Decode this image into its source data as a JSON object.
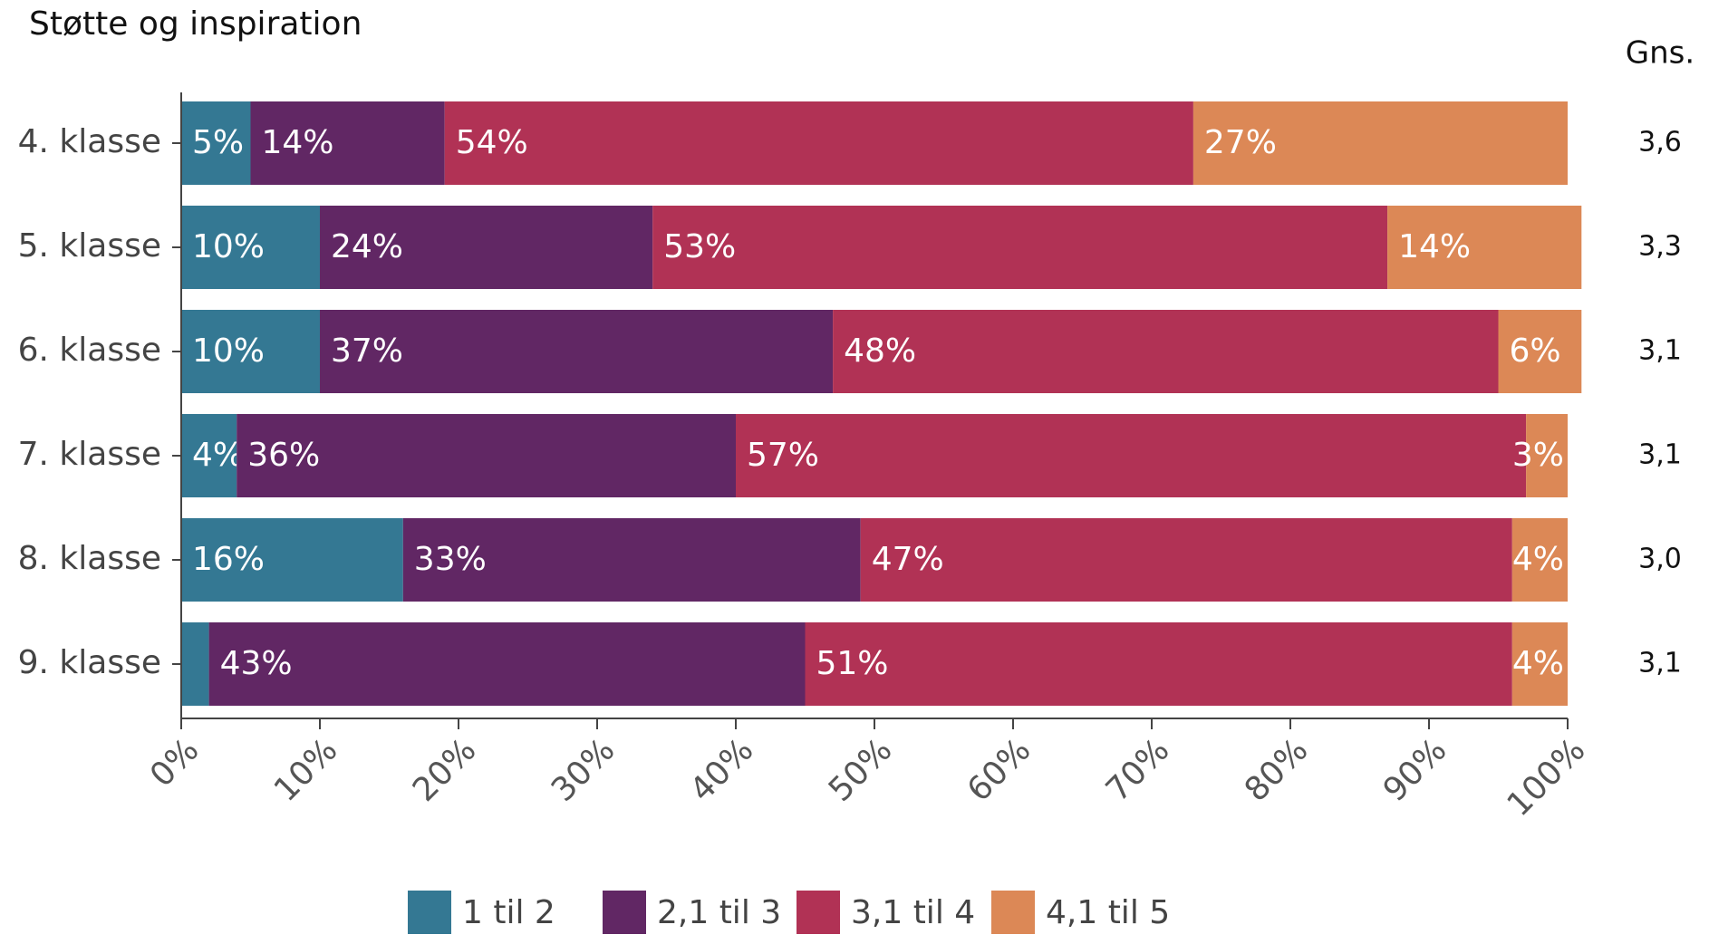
{
  "chart_data": {
    "type": "stacked-barh",
    "title": "Støtte og inspiration",
    "categories": [
      "4. klasse",
      "5. klasse",
      "6. klasse",
      "7. klasse",
      "8. klasse",
      "9. klasse"
    ],
    "series": [
      {
        "name": "1 til 2",
        "color": "#347893",
        "values": [
          5,
          10,
          10,
          4,
          16,
          2
        ],
        "value_labels": [
          "5%",
          "10%",
          "10%",
          "4%",
          "16%",
          null
        ]
      },
      {
        "name": "2,1 til 3",
        "color": "#612764",
        "values": [
          14,
          24,
          37,
          36,
          33,
          43
        ],
        "value_labels": [
          "14%",
          "24%",
          "37%",
          "36%",
          "33%",
          "43%"
        ]
      },
      {
        "name": "3,1 til 4",
        "color": "#b13255",
        "values": [
          54,
          53,
          48,
          57,
          47,
          51
        ],
        "value_labels": [
          "54%",
          "53%",
          "48%",
          "57%",
          "47%",
          "51%"
        ]
      },
      {
        "name": "4,1 til 5",
        "color": "#dc8856",
        "values": [
          27,
          14,
          6,
          3,
          4,
          4
        ],
        "value_labels": [
          "27%",
          "14%",
          "6%",
          "3%",
          "4%",
          "4%"
        ]
      }
    ],
    "xlim": [
      0,
      100
    ],
    "xticks": [
      {
        "value": 0,
        "label": "0%"
      },
      {
        "value": 10,
        "label": "10%"
      },
      {
        "value": 20,
        "label": "20%"
      },
      {
        "value": 30,
        "label": "30%"
      },
      {
        "value": 40,
        "label": "40%"
      },
      {
        "value": 50,
        "label": "50%"
      },
      {
        "value": 60,
        "label": "60%"
      },
      {
        "value": 70,
        "label": "70%"
      },
      {
        "value": 80,
        "label": "80%"
      },
      {
        "value": 90,
        "label": "90%"
      },
      {
        "value": 100,
        "label": "100%"
      }
    ],
    "mean_header": "Gns.",
    "mean_labels": [
      "3,6",
      "3,3",
      "3,1",
      "3,1",
      "3,0",
      "3,1"
    ]
  }
}
